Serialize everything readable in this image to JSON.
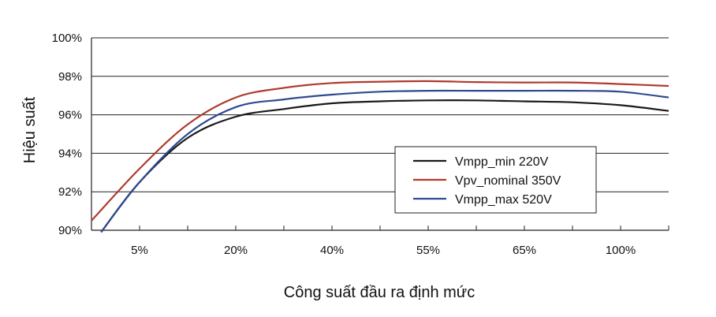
{
  "chart_data": {
    "type": "line",
    "title": "",
    "xlabel": "Công suất đầu ra định mức",
    "ylabel": "Hiệu suất",
    "x_tick_labels": [
      "5%",
      "20%",
      "40%",
      "55%",
      "65%",
      "100%"
    ],
    "y_tick_labels": [
      "90%",
      "92%",
      "94%",
      "96%",
      "98%",
      "100%"
    ],
    "ylim": [
      90,
      100
    ],
    "grid": "horizontal",
    "legend_position": "center-right",
    "series": [
      {
        "name": "Vmpp_min 220V",
        "color": "#1a1a1a",
        "points": [
          [
            0.1,
            89.9
          ],
          [
            0.5,
            92.5
          ],
          [
            1.0,
            94.8
          ],
          [
            1.5,
            95.9
          ],
          [
            2.0,
            96.3
          ],
          [
            2.5,
            96.6
          ],
          [
            3.0,
            96.7
          ],
          [
            3.5,
            96.75
          ],
          [
            4.0,
            96.75
          ],
          [
            4.5,
            96.7
          ],
          [
            5.0,
            96.65
          ],
          [
            5.5,
            96.5
          ],
          [
            6.0,
            96.2
          ]
        ]
      },
      {
        "name": "Vpv_nominal 350V",
        "color": "#b03a2e",
        "points": [
          [
            0.0,
            90.5
          ],
          [
            0.5,
            93.2
          ],
          [
            1.0,
            95.5
          ],
          [
            1.5,
            96.9
          ],
          [
            2.0,
            97.4
          ],
          [
            2.5,
            97.65
          ],
          [
            3.0,
            97.72
          ],
          [
            3.5,
            97.75
          ],
          [
            4.0,
            97.7
          ],
          [
            4.5,
            97.68
          ],
          [
            5.0,
            97.68
          ],
          [
            5.5,
            97.6
          ],
          [
            6.0,
            97.5
          ]
        ]
      },
      {
        "name": "Vmpp_max 520V",
        "color": "#2e4a8f",
        "points": [
          [
            0.1,
            89.9
          ],
          [
            0.5,
            92.5
          ],
          [
            1.0,
            95.0
          ],
          [
            1.5,
            96.4
          ],
          [
            2.0,
            96.8
          ],
          [
            2.5,
            97.05
          ],
          [
            3.0,
            97.2
          ],
          [
            3.5,
            97.25
          ],
          [
            4.0,
            97.25
          ],
          [
            4.5,
            97.25
          ],
          [
            5.0,
            97.25
          ],
          [
            5.5,
            97.2
          ],
          [
            6.0,
            96.9
          ]
        ]
      }
    ]
  }
}
